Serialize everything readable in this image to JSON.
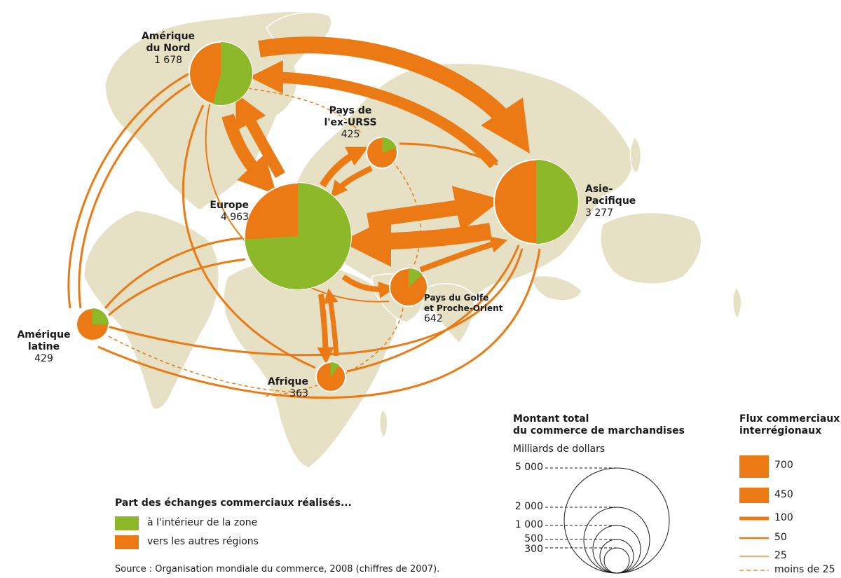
{
  "colors": {
    "land": "#e6e1c4",
    "land_stroke": "#ffffff",
    "intra": "#8db82a",
    "external": "#ec7a14"
  },
  "regions": [
    {
      "id": "north_america",
      "name_lines": [
        "Amérique",
        "du Nord"
      ],
      "total": "1 678",
      "intra_share": 0.54
    },
    {
      "id": "ex_urss",
      "name_lines": [
        "Pays de",
        "l'ex-URSS"
      ],
      "total": "425",
      "intra_share": 0.2
    },
    {
      "id": "europe",
      "name_lines": [
        "Europe"
      ],
      "total": "4 963",
      "intra_share": 0.74
    },
    {
      "id": "asia_pacific",
      "name_lines": [
        "Asie-",
        "Pacifique"
      ],
      "total": "3 277",
      "intra_share": 0.5
    },
    {
      "id": "gulf",
      "name_lines": [
        "Pays du Golfe",
        "et Proche-Orient"
      ],
      "total": "642",
      "intra_share": 0.13
    },
    {
      "id": "latin_america",
      "name_lines": [
        "Amérique",
        "latine"
      ],
      "total": "429",
      "intra_share": 0.25
    },
    {
      "id": "africa",
      "name_lines": [
        "Afrique"
      ],
      "total": "363",
      "intra_share": 0.1
    }
  ],
  "legend_share": {
    "title": "Part des échanges commerciaux réalisés...",
    "items": [
      {
        "label": "à l'intérieur de la zone",
        "color_key": "intra"
      },
      {
        "label": "vers les autres régions",
        "color_key": "external"
      }
    ]
  },
  "legend_total": {
    "title_lines": [
      "Montant total",
      "du commerce de marchandises"
    ],
    "unit": "Milliards de dollars",
    "values": [
      "5 000",
      "2 000",
      "1 000",
      "500",
      "300"
    ]
  },
  "legend_flows": {
    "title_lines": [
      "Flux commerciaux",
      "interrégionaux"
    ],
    "items": [
      "700",
      "450",
      "100",
      "50",
      "25",
      "moins de 25"
    ]
  },
  "source": "Source : Organisation mondiale du commerce, 2008 (chiffres de 2007)."
}
